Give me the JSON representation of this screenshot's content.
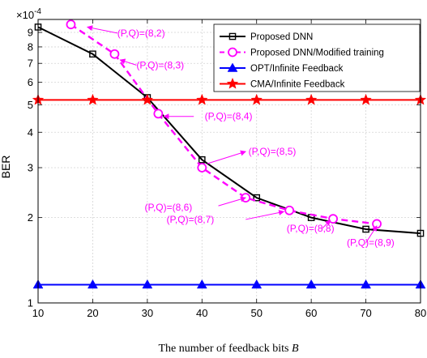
{
  "chart_data": {
    "type": "line",
    "ylabel": "BER",
    "xlabel_text": "The number of feedback bits",
    "xlabel_var": "B",
    "y_exponent_label": "×10",
    "y_exponent_power": "-4",
    "y_scale": "log",
    "xlim": [
      10,
      80
    ],
    "ylim": [
      1.0,
      10.0
    ],
    "grid": true,
    "legend_position": "top-right",
    "x_ticks": [
      10,
      20,
      30,
      40,
      50,
      60,
      70,
      80
    ],
    "x_tick_labels": [
      "10",
      "20",
      "30",
      "40",
      "50",
      "60",
      "70",
      "80"
    ],
    "y_ticks": [
      1,
      2,
      3,
      4,
      5,
      6,
      7,
      8,
      9
    ],
    "y_tick_labels": [
      "1",
      "2",
      "3",
      "4",
      "5",
      "6",
      "7",
      "8",
      "9"
    ],
    "series": [
      {
        "name": "Proposed DNN",
        "color": "#000000",
        "line_style": "solid",
        "marker": "square",
        "x": [
          10,
          20,
          30,
          40,
          50,
          60,
          70,
          80
        ],
        "y": [
          9.4,
          7.55,
          5.3,
          3.2,
          2.35,
          2.0,
          1.82,
          1.76
        ]
      },
      {
        "name": "Proposed DNN/Modified training",
        "color": "#ff00ff",
        "line_style": "dashed",
        "marker": "circle",
        "x": [
          16,
          24,
          32,
          40,
          48,
          56,
          64,
          72
        ],
        "y": [
          9.6,
          7.55,
          4.65,
          3.0,
          2.35,
          2.12,
          1.98,
          1.9
        ]
      },
      {
        "name": "OPT/Infinite Feedback",
        "color": "#0000ff",
        "line_style": "solid",
        "marker": "triangle",
        "x": [
          10,
          20,
          30,
          40,
          50,
          60,
          70,
          80
        ],
        "y": [
          1.16,
          1.16,
          1.16,
          1.16,
          1.16,
          1.16,
          1.16,
          1.16
        ]
      },
      {
        "name": "CMA/Infinite Feedback",
        "color": "#ff0000",
        "line_style": "solid",
        "marker": "star",
        "x": [
          10,
          20,
          30,
          40,
          50,
          60,
          70,
          80
        ],
        "y": [
          5.2,
          5.2,
          5.2,
          5.2,
          5.2,
          5.2,
          5.2,
          5.2
        ]
      }
    ],
    "annotations": [
      {
        "text": "(P,Q)=(8,2)",
        "color": "#ff00ff",
        "arrow_from": [
          24.5,
          8.95
        ],
        "arrow_to": [
          19.0,
          9.4
        ],
        "text_at": [
          24.5,
          8.95
        ]
      },
      {
        "text": "(P,Q)=(8,3)",
        "color": "#ff00ff",
        "arrow_from": [
          28.0,
          6.9
        ],
        "arrow_to": [
          25.0,
          7.2
        ],
        "text_at": [
          28.0,
          6.9
        ]
      },
      {
        "text": "(P,Q)=(8,4)",
        "color": "#ff00ff",
        "arrow_from": [
          38.5,
          4.55
        ],
        "arrow_to": [
          33.0,
          4.55
        ],
        "text_at": [
          40.5,
          4.55
        ]
      },
      {
        "text": "(P,Q)=(8,5)",
        "color": "#ff00ff",
        "arrow_from": [
          41.0,
          3.1
        ],
        "arrow_to": [
          48.0,
          3.42
        ],
        "text_at": [
          48.5,
          3.42
        ]
      },
      {
        "text": "(P,Q)=(8,6)",
        "color": "#ff00ff",
        "arrow_from": [
          43.0,
          2.2
        ],
        "arrow_to": [
          48.0,
          2.35
        ],
        "text_at": [
          29.5,
          2.17
        ]
      },
      {
        "text": "(P,Q)=(8,7)",
        "color": "#ff00ff",
        "arrow_from": [
          48.0,
          1.97
        ],
        "arrow_to": [
          55.0,
          2.1
        ],
        "text_at": [
          33.5,
          1.97
        ]
      },
      {
        "text": "(P,Q)=(8,8)",
        "color": "#ff00ff",
        "arrow_from": [
          62.0,
          1.83
        ],
        "arrow_to": [
          63.5,
          1.96
        ],
        "text_at": [
          55.5,
          1.83
        ]
      },
      {
        "text": "(P,Q)=(8,9)",
        "color": "#ff00ff",
        "arrow_from": [
          70.0,
          1.63
        ],
        "arrow_to": [
          72.0,
          1.87
        ],
        "text_at": [
          66.5,
          1.63
        ]
      }
    ]
  }
}
